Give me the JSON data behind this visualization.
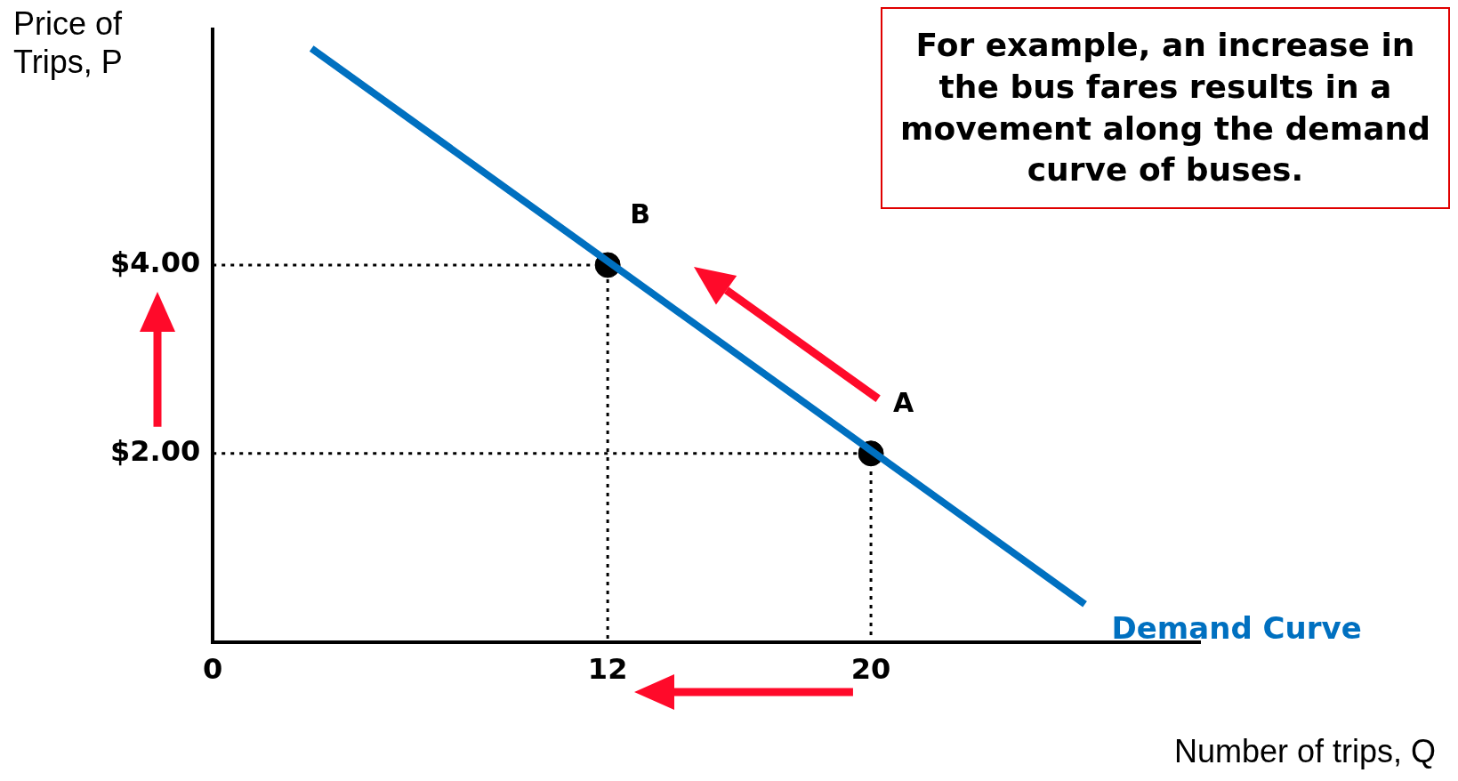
{
  "chart_data": {
    "type": "line",
    "xlabel": "Number of trips, Q",
    "ylabel": "Price of Trips, P",
    "xlim": [
      0,
      30
    ],
    "ylim": [
      0,
      6.5
    ],
    "xticks": [
      0,
      12,
      20
    ],
    "yticks": [
      {
        "value": 0,
        "label": null
      },
      {
        "value": 2,
        "label": "$2.00"
      },
      {
        "value": 4,
        "label": "$4.00"
      }
    ],
    "grid": false,
    "legend": false,
    "marker": "none",
    "series": [
      {
        "name": "Demand Curve",
        "color": "#0070c0",
        "x": [
          3,
          26.5
        ],
        "values": [
          6.3,
          0.4
        ]
      },
      {
        "color": "#000000",
        "x": [
          0,
          12,
          12
        ],
        "values": [
          4,
          4,
          0
        ],
        "line_style": "dotted"
      },
      {
        "color": "#000000",
        "x": [
          0,
          20,
          20
        ],
        "values": [
          2,
          2,
          0
        ],
        "line_style": "dotted"
      },
      {
        "type": "scatter",
        "color": "#000000",
        "x": [
          12,
          20
        ],
        "values": [
          4,
          2
        ],
        "marker": "circle"
      }
    ],
    "annotations": [
      {
        "text": "B",
        "x": 12,
        "y": 4
      },
      {
        "text": "A",
        "x": 20,
        "y": 2
      },
      "For example, an increase in the bus fares results in a movement along the demand curve of buses."
    ]
  }
}
